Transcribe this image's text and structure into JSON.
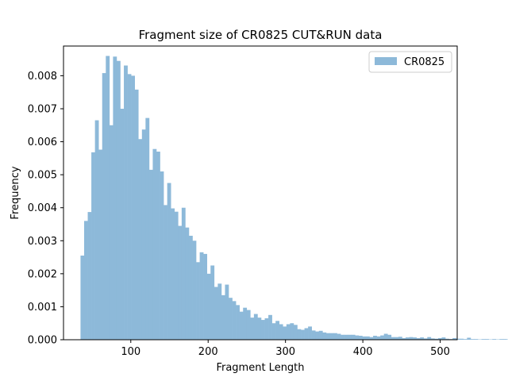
{
  "chart_data": {
    "type": "bar",
    "title": "Fragment size of CR0825 CUT&RUN data",
    "xlabel": "Fragment Length",
    "ylabel": "Frequency",
    "xlim": [
      13,
      522
    ],
    "ylim": [
      0,
      0.0089
    ],
    "xticks": [
      100,
      200,
      300,
      400,
      500
    ],
    "yticks": [
      0.0,
      0.001,
      0.002,
      0.003,
      0.004,
      0.005,
      0.006,
      0.007,
      0.008
    ],
    "ytick_labels": [
      "0.000",
      "0.001",
      "0.002",
      "0.003",
      "0.004",
      "0.005",
      "0.006",
      "0.007",
      "0.008"
    ],
    "legend": {
      "position": "top-right"
    },
    "color": "#8db9d9",
    "series": [
      {
        "name": "CR0825",
        "bin_start": 35,
        "bin_width": 4.67,
        "values": [
          0.00255,
          0.0036,
          0.00387,
          0.00568,
          0.00665,
          0.00576,
          0.00808,
          0.0086,
          0.0065,
          0.00858,
          0.00845,
          0.007,
          0.00831,
          0.00805,
          0.008,
          0.00758,
          0.00608,
          0.00637,
          0.00672,
          0.00515,
          0.00578,
          0.0057,
          0.0051,
          0.00408,
          0.00475,
          0.00398,
          0.00388,
          0.00345,
          0.004,
          0.0034,
          0.00315,
          0.003,
          0.00235,
          0.00265,
          0.0026,
          0.002,
          0.00225,
          0.0016,
          0.0017,
          0.00135,
          0.00167,
          0.00127,
          0.00117,
          0.00105,
          0.00085,
          0.00097,
          0.0009,
          0.00067,
          0.00078,
          0.00067,
          0.0006,
          0.00065,
          0.00075,
          0.0005,
          0.00057,
          0.00047,
          0.0004,
          0.00047,
          0.0005,
          0.00045,
          0.00032,
          0.0003,
          0.00035,
          0.0004,
          0.00028,
          0.00025,
          0.00027,
          0.00022,
          0.0002,
          0.0002,
          0.0002,
          0.00018,
          0.00015,
          0.00015,
          0.00015,
          0.00015,
          0.00013,
          0.00012,
          0.0001,
          0.0001,
          8e-05,
          0.00012,
          0.0001,
          0.00013,
          0.00018,
          0.00015,
          8e-05,
          8e-05,
          9e-05,
          5e-05,
          7e-05,
          8e-05,
          7e-05,
          5e-05,
          7e-05,
          4e-05,
          8e-05,
          4e-05,
          3e-05,
          5e-05,
          7e-05,
          3e-05,
          2e-05,
          5e-05,
          3e-05,
          3e-05,
          2e-05,
          6e-05,
          2e-05,
          2e-05,
          1e-05,
          2e-05,
          2e-05,
          1e-05,
          2e-05,
          1e-05,
          2e-05,
          2e-05,
          1e-05,
          1e-05,
          1e-05
        ]
      }
    ]
  }
}
